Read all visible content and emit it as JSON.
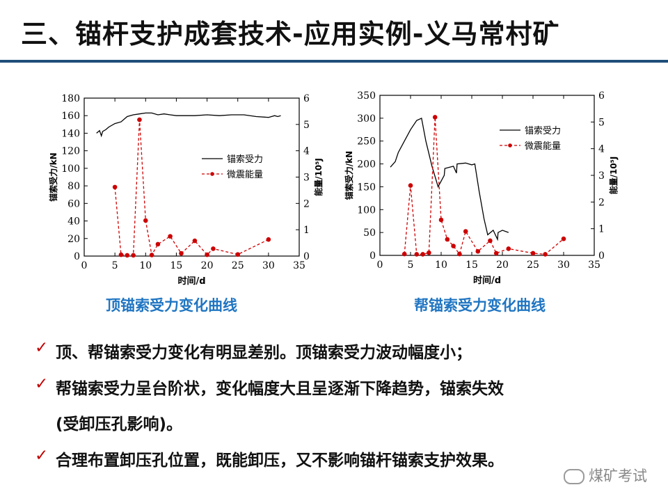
{
  "slide": {
    "title": "三、锚杆支护成套技术-应用实例-义马常村矿",
    "captions": [
      "顶锚索受力变化曲线",
      "帮锚索受力变化曲线"
    ],
    "bullets": [
      "顶、帮锚索受力变化有明显差别。顶锚索受力波动幅度小；",
      "帮锚索受力呈台阶状，变化幅度大且呈逐渐下降趋势，锚索失效",
      "(受卸压孔影响)。",
      "合理布置卸压孔位置，既能卸压，又不影响锚杆锚索支护效果。"
    ],
    "check_mark": "✓",
    "watermark": "煤矿考试"
  },
  "chart_data": [
    {
      "type": "line",
      "xlabel": "时间/d",
      "ylabel": "锚索受力/kN",
      "ylabel2": "能量/10⁵J",
      "xlim": [
        0,
        35
      ],
      "ylim": [
        0,
        180
      ],
      "y2lim": [
        0,
        6
      ],
      "xticks": [
        0,
        5,
        10,
        15,
        20,
        25,
        30,
        35
      ],
      "yticks": [
        0,
        20,
        40,
        60,
        80,
        100,
        120,
        140,
        160,
        180
      ],
      "y2ticks": [
        0,
        1,
        2,
        3,
        4,
        5,
        6
      ],
      "legend_position": "center-right",
      "series": [
        {
          "name": "锚索受力",
          "axis": "left",
          "color": "#000000",
          "style": "solid",
          "x": [
            2,
            2.5,
            2.8,
            3,
            3.5,
            4,
            5,
            6,
            7,
            8,
            9,
            10,
            11,
            12,
            13,
            14,
            15,
            16,
            18,
            20,
            22,
            24,
            26,
            28,
            30,
            31,
            31.5,
            32
          ],
          "y": [
            140,
            143,
            137,
            142,
            144,
            147,
            151,
            153,
            159,
            161,
            162,
            163,
            163,
            161,
            162,
            161,
            160,
            160,
            160,
            161,
            160,
            161,
            161,
            159,
            158,
            160,
            159,
            160
          ]
        },
        {
          "name": "微震能量",
          "axis": "right",
          "color": "#cc0000",
          "style": "dashed",
          "x": [
            5,
            6,
            7,
            8,
            9,
            10,
            11,
            12,
            14,
            15.8,
            18,
            20,
            21,
            25,
            30
          ],
          "y": [
            2.62,
            0.05,
            0.03,
            0.03,
            5.18,
            1.35,
            0.04,
            0.45,
            0.75,
            0.1,
            0.58,
            0.05,
            0.28,
            0.06,
            0.63
          ]
        }
      ]
    },
    {
      "type": "line",
      "xlabel": "时间/d",
      "ylabel": "锚索受力/kN",
      "ylabel2": "能量/10⁵J",
      "xlim": [
        0,
        35
      ],
      "ylim": [
        0,
        350
      ],
      "y2lim": [
        0,
        6
      ],
      "xticks": [
        0,
        5,
        10,
        15,
        20,
        25,
        30,
        35
      ],
      "yticks": [
        0,
        50,
        100,
        150,
        200,
        250,
        300,
        350
      ],
      "y2ticks": [
        0,
        1,
        2,
        3,
        4,
        5,
        6
      ],
      "legend_position": "top-right",
      "series": [
        {
          "name": "锚索受力",
          "axis": "left",
          "color": "#000000",
          "style": "solid",
          "x": [
            1.7,
            2.5,
            3,
            4,
            5,
            6,
            6.8,
            7.5,
            8.5,
            9.5,
            10.5,
            10.6,
            12,
            12.5,
            12.6,
            14,
            15,
            15.5,
            16.2,
            17,
            17.6,
            18.5,
            19.2,
            19.3,
            20,
            21
          ],
          "y": [
            193,
            205,
            225,
            250,
            275,
            295,
            300,
            250,
            195,
            150,
            175,
            190,
            195,
            180,
            200,
            202,
            198,
            200,
            140,
            80,
            45,
            55,
            35,
            50,
            55,
            50
          ]
        },
        {
          "name": "微震能量",
          "axis": "right",
          "color": "#cc0000",
          "style": "dashed",
          "x": [
            4,
            5,
            6,
            7,
            8,
            9,
            10,
            11,
            12,
            13,
            14,
            16,
            18,
            19,
            21,
            25,
            27,
            30
          ],
          "y": [
            0.05,
            2.62,
            0.04,
            0.04,
            0.1,
            5.18,
            1.33,
            0.6,
            0.35,
            0.05,
            0.9,
            0.15,
            0.55,
            0.08,
            0.25,
            0.08,
            0.04,
            0.62
          ]
        }
      ]
    }
  ]
}
